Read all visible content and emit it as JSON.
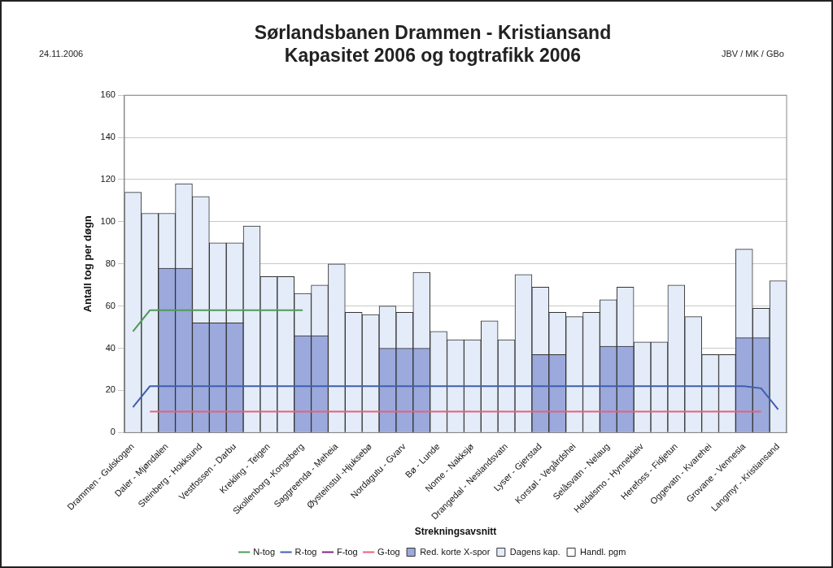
{
  "chart_data": {
    "type": "bar",
    "title": "Sørlandsbanen Drammen - Kristiansand",
    "subtitle": "Kapasitet 2006 og togtrafikk 2006",
    "annotations": [
      "24.11.2006",
      "JBV / MK / GBo"
    ],
    "x_label": "Strekningsavsnitt",
    "y_label": "Antall tog per døgn",
    "categories": [
      "Drammen - Gulskogen",
      null,
      "Daler - Mjøndalen",
      null,
      "Steinberg - Hokksund",
      null,
      "Vestfossen - Darbu",
      null,
      "Krekling - Teigen",
      null,
      "Skollenborg -Kongsberg",
      null,
      "Saggreenda - Meheia",
      null,
      "Øysteinstul -Hjuksebø",
      null,
      "Nordagutu - Gvarv",
      null,
      "Bø - Lunde",
      null,
      "Nome - Nakksjø",
      null,
      "Drangedal - Neslandsvatn",
      null,
      "Lyser - Gjerstad",
      null,
      "Korstøl - Vegårdshei",
      null,
      "Selåsvatn - Nelaug",
      null,
      "Heldalsmo - Hynnekleiv",
      null,
      "Herefoss - Fidjetun",
      null,
      "Oggevatn - Kvarehei",
      null,
      "Grovane - Vennesla",
      null,
      "Langmyr - Kristiansand"
    ],
    "series": [
      {
        "name": "Handl. pgm",
        "type": "bar",
        "color": "#ffffff",
        "values": [
          null,
          null,
          null,
          null,
          null,
          null,
          null,
          null,
          null,
          null,
          null,
          null,
          null,
          null,
          null,
          null,
          null,
          null,
          null,
          null,
          null,
          null,
          null,
          null,
          null,
          null,
          null,
          null,
          null,
          null,
          null,
          null,
          null,
          null,
          null,
          null,
          null,
          null,
          null
        ]
      },
      {
        "name": "Dagens kap.",
        "type": "bar",
        "color": "#e3ecf8",
        "values": [
          114,
          104,
          104,
          118,
          112,
          90,
          90,
          98,
          74,
          74,
          66,
          70,
          80,
          57,
          56,
          60,
          57,
          76,
          48,
          44,
          44,
          53,
          44,
          75,
          69,
          57,
          55,
          57,
          63,
          69,
          43,
          43,
          70,
          55,
          37,
          37,
          87,
          59,
          72
        ]
      },
      {
        "name": "Red. korte X-spor",
        "type": "bar",
        "color": "#9ba9dc",
        "values": [
          null,
          null,
          78,
          78,
          52,
          52,
          52,
          null,
          null,
          null,
          46,
          46,
          null,
          null,
          null,
          40,
          40,
          40,
          null,
          null,
          null,
          null,
          null,
          null,
          37,
          37,
          null,
          null,
          41,
          41,
          null,
          null,
          null,
          null,
          null,
          null,
          45,
          45,
          null
        ]
      },
      {
        "name": "N-tog",
        "type": "line",
        "color": "#4f9a55",
        "values": [
          48,
          58,
          58,
          58,
          58,
          58,
          58,
          58,
          58,
          58,
          58,
          null,
          null,
          null,
          null,
          null,
          null,
          null,
          null,
          null,
          null,
          null,
          null,
          null,
          null,
          null,
          null,
          null,
          null,
          null,
          null,
          null,
          null,
          null,
          null,
          null,
          null,
          null,
          null
        ]
      },
      {
        "name": "R-tog",
        "type": "line",
        "color": "#3f5fb0",
        "values": [
          12,
          22,
          22,
          22,
          22,
          22,
          22,
          22,
          22,
          22,
          22,
          22,
          22,
          22,
          22,
          22,
          22,
          22,
          22,
          22,
          22,
          22,
          22,
          22,
          22,
          22,
          22,
          22,
          22,
          22,
          22,
          22,
          22,
          22,
          22,
          22,
          22,
          21,
          11
        ]
      },
      {
        "name": "F-tog",
        "type": "line",
        "color": "#7a2a7a",
        "values": [
          null,
          null,
          null,
          null,
          null,
          null,
          null,
          null,
          null,
          null,
          null,
          null,
          null,
          null,
          null,
          null,
          null,
          null,
          null,
          null,
          null,
          null,
          null,
          null,
          null,
          null,
          null,
          null,
          null,
          null,
          null,
          null,
          null,
          null,
          null,
          null,
          null,
          null,
          null
        ]
      },
      {
        "name": "G-tog",
        "type": "line",
        "color": "#e8607a",
        "values": [
          null,
          10,
          10,
          10,
          10,
          10,
          10,
          10,
          10,
          10,
          10,
          10,
          10,
          10,
          10,
          10,
          10,
          10,
          10,
          10,
          10,
          10,
          10,
          10,
          10,
          10,
          10,
          10,
          10,
          10,
          10,
          10,
          10,
          10,
          10,
          10,
          10,
          10,
          null
        ]
      }
    ],
    "ylim": [
      0,
      160
    ],
    "yticks": [
      0,
      20,
      40,
      60,
      80,
      100,
      120,
      140,
      160
    ],
    "grid": true,
    "legend": "bottom"
  }
}
